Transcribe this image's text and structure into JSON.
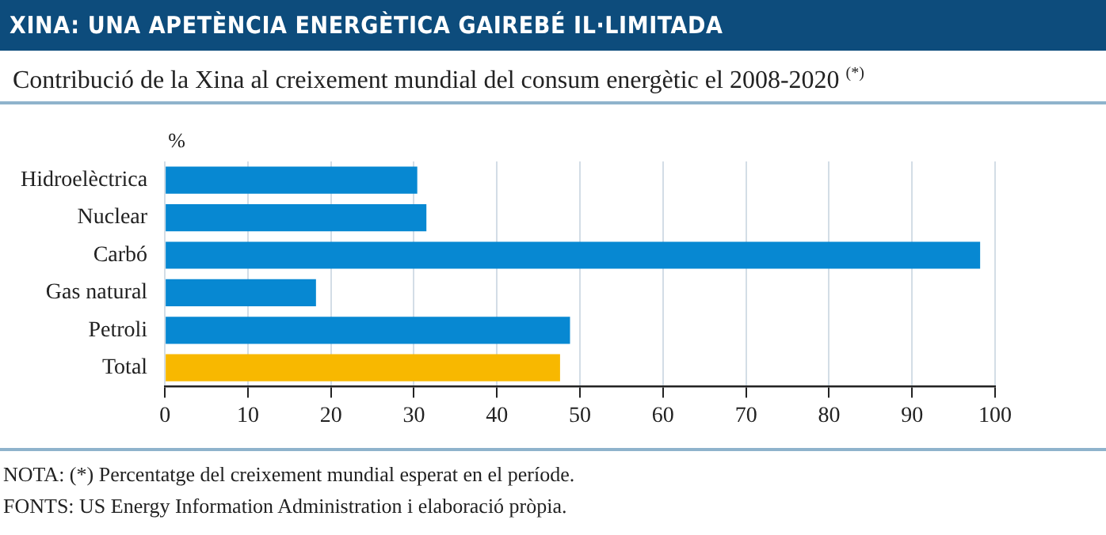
{
  "chart_data": {
    "type": "bar",
    "orientation": "horizontal",
    "title": "XINA: UNA APETÈNCIA ENERGÈTICA GAIREBÉ IL·LIMITADA",
    "subtitle": "Contribució de la Xina al creixement mundial del consum energètic el 2008-2020 $^{(*)}$",
    "xlabel": "%",
    "categories": [
      "Hidroelèctrica",
      "Nuclear",
      "Carbó",
      "Gas natural",
      "Petroli",
      "Total"
    ],
    "values": [
      30.4,
      31.5,
      98.2,
      18.2,
      48.8,
      47.6
    ],
    "colors": [
      "#0788d2",
      "#0788d2",
      "#0788d2",
      "#0788d2",
      "#0788d2",
      "#f8b800"
    ],
    "xlim": [
      0,
      100
    ],
    "xticks": [
      0,
      10,
      20,
      30,
      40,
      50,
      60,
      70,
      80,
      90,
      100
    ],
    "grid": "x",
    "legend": false,
    "annotations": [
      "NOTA: (*) Percentatge del creixement mundial esperat en el període.",
      "FONTS: US Energy Information Administration i elaboració pròpia."
    ]
  }
}
